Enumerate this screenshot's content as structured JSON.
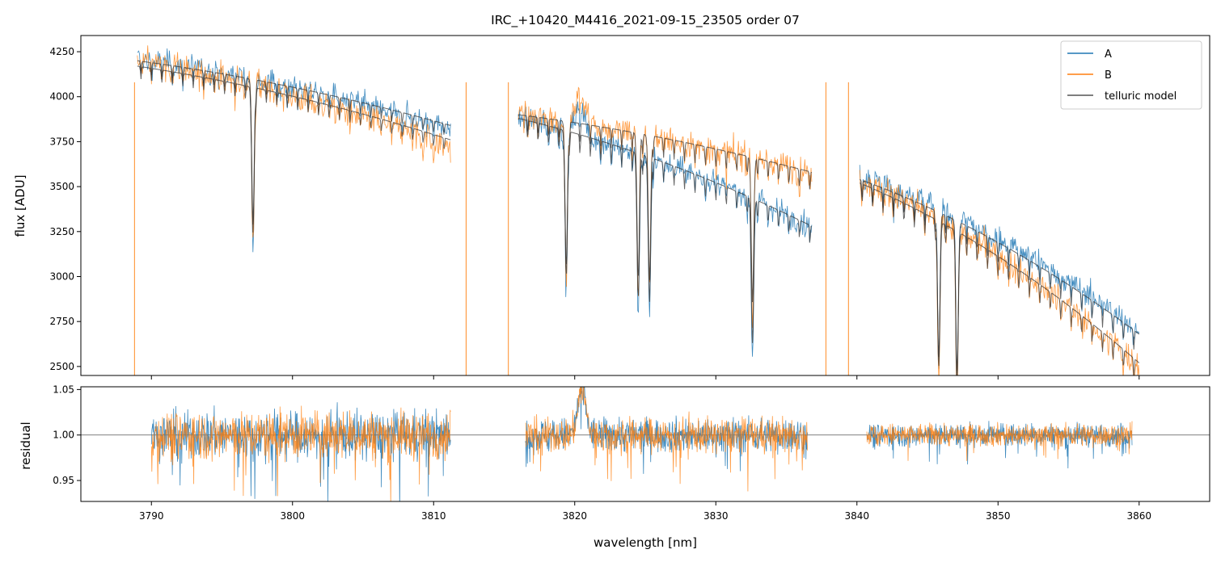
{
  "chart_data": [
    {
      "type": "line",
      "title": "IRC_+10420_M4416_2021-09-15_23505  order 07",
      "xlabel": "",
      "ylabel": "flux [ADU]",
      "xlim": [
        3785,
        3865
      ],
      "ylim": [
        2450,
        4340
      ],
      "yticks": [
        2500,
        2750,
        3000,
        3250,
        3500,
        3750,
        4000,
        4250
      ],
      "xticks": [
        3790,
        3800,
        3810,
        3820,
        3830,
        3840,
        3850,
        3860
      ],
      "legend": {
        "position": "top-right",
        "entries": [
          {
            "name": "A",
            "color": "#1f77b4"
          },
          {
            "name": "B",
            "color": "#ff7f0e"
          },
          {
            "name": "telluric model",
            "color": "#555555"
          }
        ]
      },
      "segments": [
        {
          "x": [
            3789.0,
            3811.2
          ],
          "A_start": 4210,
          "A_end": 3820,
          "B_start": 4200,
          "B_end": 3720,
          "model_A_start": 4200,
          "model_A_end": 3840,
          "model_B_start": 4170,
          "model_B_end": 3760
        },
        {
          "x": [
            3816.0,
            3836.8
          ],
          "A_start": 3880,
          "A_end": 3280,
          "B_start": 3900,
          "B_end": 3570,
          "model_A_start": 3880,
          "model_A_end": 3280,
          "model_B_start": 3900,
          "model_B_end": 3580
        },
        {
          "x": [
            3840.2,
            3860.0
          ],
          "A_start": 3560,
          "A_end": 2700,
          "B_start": 3540,
          "B_end": 2500,
          "model_A_start": 3540,
          "model_A_end": 2680,
          "model_B_start": 3520,
          "model_B_end": 2520
        }
      ],
      "series": [
        {
          "name": "A",
          "color": "#1f77b4"
        },
        {
          "name": "B",
          "color": "#ff7f0e"
        },
        {
          "name": "telluric model",
          "color": "#555555"
        }
      ]
    },
    {
      "type": "line",
      "title": "",
      "xlabel": "wavelength [nm]",
      "ylabel": "residual",
      "xlim": [
        3785,
        3865
      ],
      "ylim": [
        0.927,
        1.053
      ],
      "yticks": [
        0.95,
        1.0,
        1.05
      ],
      "ytick_labels": [
        "0.95",
        "1.00",
        "1.05"
      ],
      "xticks": [
        3790,
        3800,
        3810,
        3820,
        3830,
        3840,
        3850,
        3860
      ],
      "xtick_labels": [
        "3790",
        "3800",
        "3810",
        "3820",
        "3830",
        "3840",
        "3850",
        "3860"
      ],
      "reference_line": 1.0,
      "segments": [
        {
          "x": [
            3790.0,
            3811.2
          ],
          "scatter": 0.025
        },
        {
          "x": [
            3816.5,
            3836.5
          ],
          "scatter": 0.018
        },
        {
          "x": [
            3840.7,
            3859.5
          ],
          "scatter": 0.012
        }
      ],
      "series": [
        {
          "name": "A",
          "color": "#1f77b4"
        },
        {
          "name": "B",
          "color": "#ff7f0e"
        }
      ]
    }
  ]
}
